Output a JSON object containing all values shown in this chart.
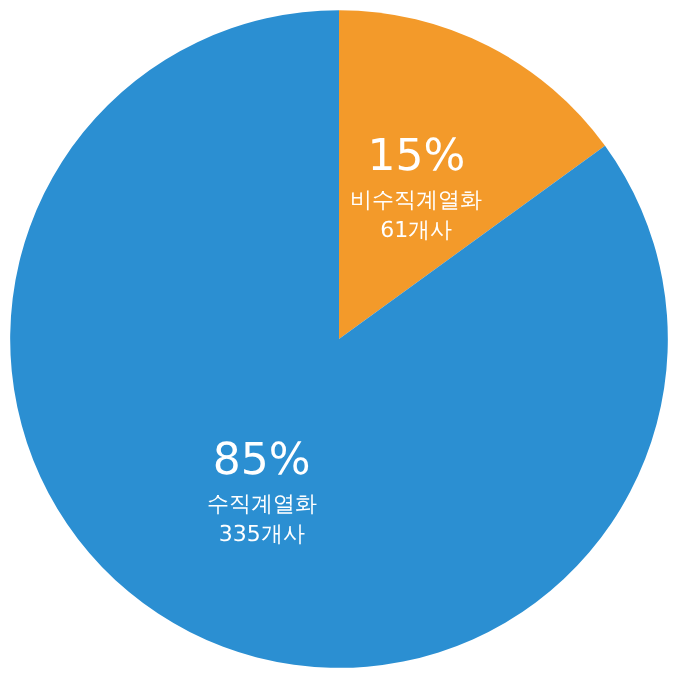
{
  "chart_data": {
    "type": "pie",
    "categories": [
      "비수직계열화 61개사",
      "수직계열화 335개사"
    ],
    "values": [
      15,
      85
    ],
    "value_labels": [
      "15%",
      "85%"
    ],
    "colors": [
      "#f39a2a",
      "#2b8fd2"
    ]
  }
}
